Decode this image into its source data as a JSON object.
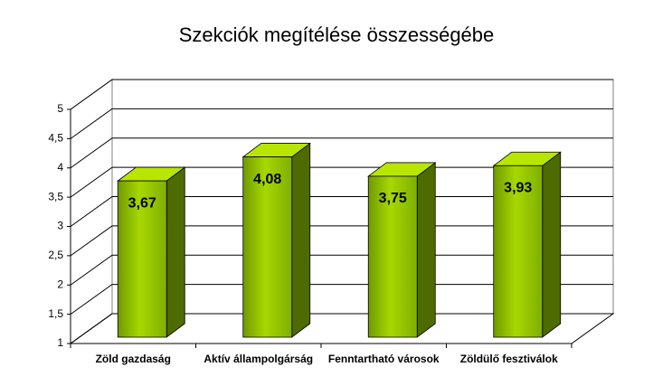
{
  "chart_data": {
    "type": "bar3d",
    "title": "Szekciók megítélése összességébe",
    "categories": [
      "Zöld gazdaság",
      "Aktív állampolgárság",
      "Fenntartható városok",
      "Zöldülő fesztiválok"
    ],
    "values": [
      3.67,
      4.08,
      3.75,
      3.93
    ],
    "value_labels": [
      "3,67",
      "4,08",
      "3,75",
      "3,93"
    ],
    "color": "#99cc00",
    "ylim": [
      1,
      5
    ],
    "yticks": [
      1,
      {
        "value": 1.5,
        "label": "1,5"
      },
      2,
      {
        "value": 2.5,
        "label": "2,5"
      },
      3,
      {
        "value": 3.5,
        "label": "3,5"
      },
      4,
      {
        "value": 4.5,
        "label": "4,5"
      },
      5
    ],
    "grid": true
  }
}
